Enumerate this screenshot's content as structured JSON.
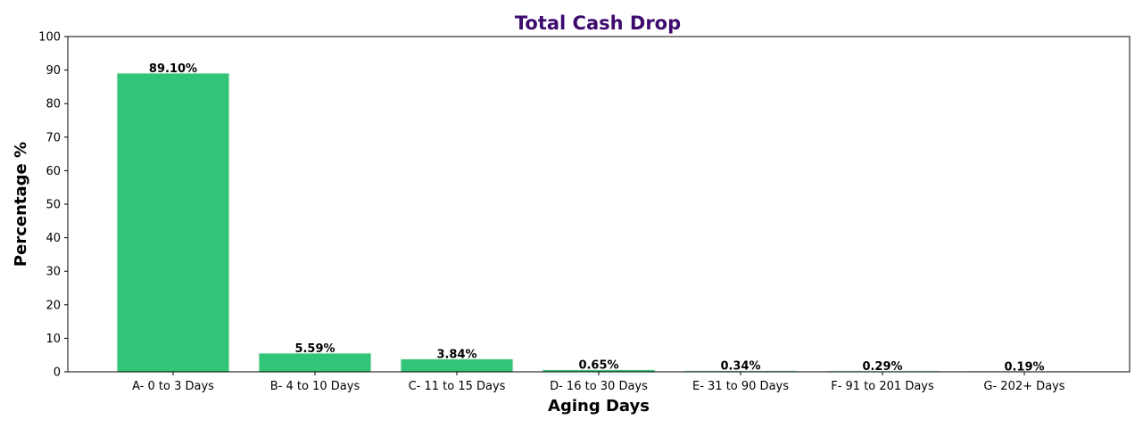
{
  "chart_data": {
    "type": "bar",
    "title": "Total Cash Drop",
    "xlabel": "Aging Days",
    "ylabel": "Percentage %",
    "categories": [
      "A- 0 to 3 Days",
      "B- 4 to 10 Days",
      "C- 11 to 15 Days",
      "D- 16 to 30 Days",
      "E- 31 to 90 Days",
      "F- 91 to 201 Days",
      "G- 202+ Days"
    ],
    "values": [
      89.1,
      5.59,
      3.84,
      0.65,
      0.34,
      0.29,
      0.19
    ],
    "data_labels": [
      "89.10%",
      "5.59%",
      "3.84%",
      "0.65%",
      "0.34%",
      "0.29%",
      "0.19%"
    ],
    "ylim": [
      0,
      100
    ],
    "yticks": [
      0,
      10,
      20,
      30,
      40,
      50,
      60,
      70,
      80,
      90,
      100
    ],
    "grid": false,
    "legend": "none",
    "colors": {
      "bar": "#32c577",
      "bar_edge": "#e6f5ec",
      "title": "#3d0a6e",
      "axis": "#000000"
    }
  }
}
